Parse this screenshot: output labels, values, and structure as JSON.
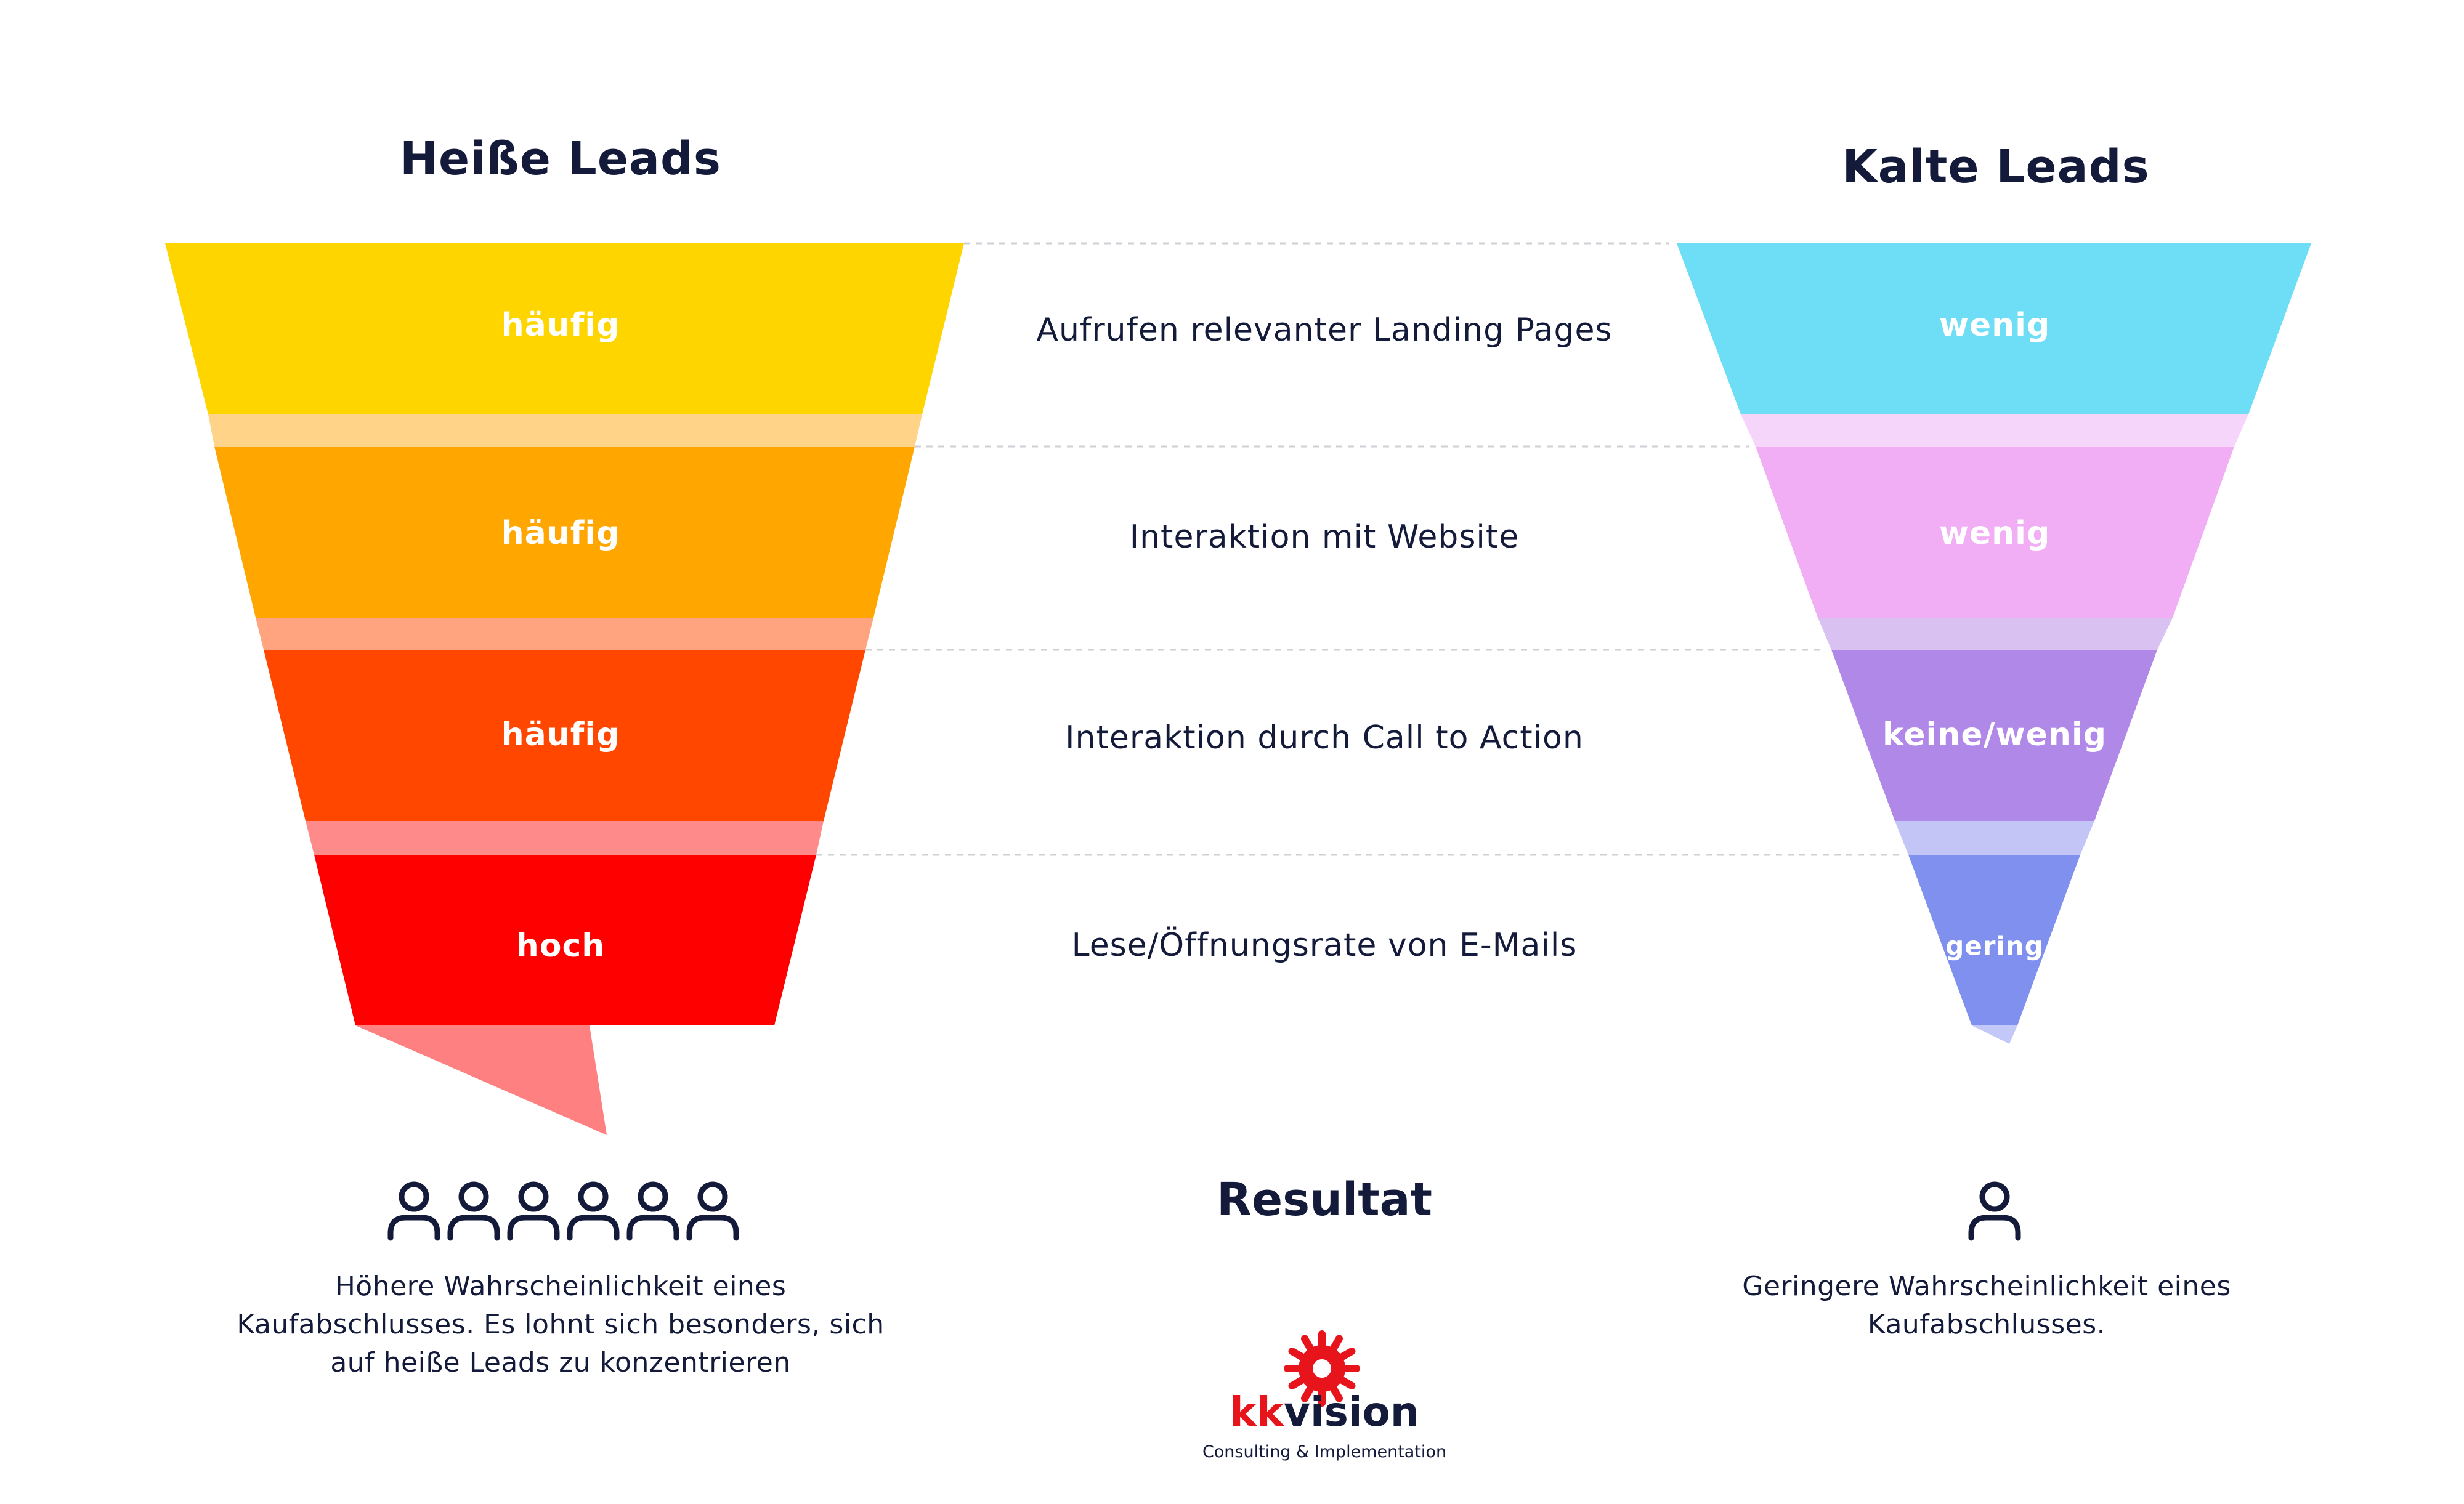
{
  "hot_leads": {
    "title": "Heiße Leads",
    "result_lines": [
      "Höhere Wahrscheinlichkeit eines",
      "Kaufabschlusses. Es lohnt sich besonders, sich",
      "auf heiße Leads zu konzentrieren"
    ],
    "person_icon_count": 6,
    "tiers": [
      {
        "label": "häufig",
        "color": "#FFD500",
        "fold_color": "#FFD489"
      },
      {
        "label": "häufig",
        "color": "#FFA600",
        "fold_color": "#FFA47F"
      },
      {
        "label": "häufig",
        "color": "#FF4700",
        "fold_color": "#FF8A8A"
      },
      {
        "label": "hoch",
        "color": "#FF0000",
        "fold_color": "#FF8080"
      }
    ]
  },
  "cold_leads": {
    "title": "Kalte Leads",
    "result_lines": [
      "Geringere Wahrscheinlichkeit eines",
      "Kaufabschlusses."
    ],
    "person_icon_count": 1,
    "tiers": [
      {
        "label": "wenig",
        "color": "#6EDDF6",
        "fold_color": "#F5D6FA"
      },
      {
        "label": "wenig",
        "color": "#F2AEF5",
        "fold_color": "#D9C2F2"
      },
      {
        "label": "keine/wenig",
        "color": "#B088E8",
        "fold_color": "#C2C5F5"
      },
      {
        "label": "gering",
        "color": "#8090EF",
        "fold_color": "#C2C8F8"
      }
    ]
  },
  "criteria": [
    "Aufrufen relevanter Landing Pages",
    "Interaktion mit Website",
    "Interaktion durch Call to Action",
    "Lese/Öffnungsrate von E-Mails"
  ],
  "result_heading": "Resultat",
  "brand": {
    "name_part1": "kk",
    "name_part2": "vision",
    "tagline": "Consulting & Implementation",
    "accent_color": "#E8141C",
    "text_color": "#141A3A"
  }
}
